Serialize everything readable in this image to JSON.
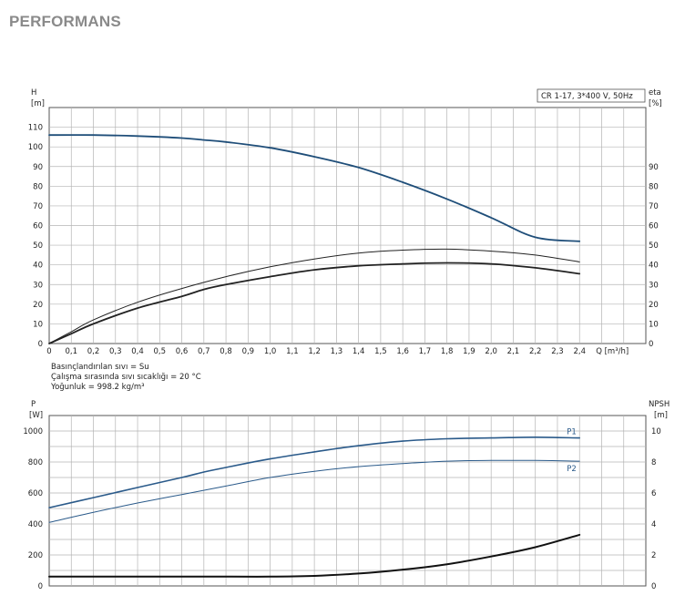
{
  "heading": "PERFORMANS",
  "chart_data": [
    {
      "type": "line",
      "legend_box": "CR 1-17, 3*400 V, 50Hz",
      "left_axis": {
        "name": "H",
        "unit": "[m]",
        "range": [
          0,
          120
        ],
        "ticks": [
          0,
          10,
          20,
          30,
          40,
          50,
          60,
          70,
          80,
          90,
          100,
          110
        ]
      },
      "right_axis": {
        "name": "eta",
        "unit": "[%]",
        "range": [
          0,
          120
        ],
        "ticks": [
          0,
          10,
          20,
          30,
          40,
          50,
          60,
          70,
          80,
          90
        ]
      },
      "x_axis": {
        "name": "Q",
        "unit": "[m³/h]",
        "range": [
          0,
          2.7
        ],
        "ticks": [
          "0",
          "0,1",
          "0,2",
          "0,3",
          "0,4",
          "0,5",
          "0,6",
          "0,7",
          "0,8",
          "0,9",
          "1,0",
          "1,1",
          "1,2",
          "1,3",
          "1,4",
          "1,5",
          "1,6",
          "1,7",
          "1,8",
          "1,9",
          "2,0",
          "2,1",
          "2,2",
          "2,3",
          "2,4"
        ]
      },
      "series": [
        {
          "axis": "left",
          "x": [
            0,
            0.2,
            0.4,
            0.6,
            0.7,
            0.8,
            1.0,
            1.2,
            1.4,
            1.6,
            1.8,
            2.0,
            2.2,
            2.4
          ],
          "y": [
            106,
            106,
            105.5,
            104.5,
            103.5,
            102.5,
            99.5,
            95,
            89.5,
            82,
            73.5,
            64,
            54,
            52
          ]
        },
        {
          "axis": "right",
          "x": [
            0,
            0.1,
            0.2,
            0.4,
            0.6,
            0.8,
            1.0,
            1.2,
            1.4,
            1.6,
            1.8,
            2.0,
            2.2,
            2.4
          ],
          "y": [
            0,
            6,
            12,
            21,
            28,
            34,
            39,
            43,
            46,
            47.5,
            48,
            47,
            45,
            41.5
          ]
        },
        {
          "axis": "right",
          "x": [
            0,
            0.1,
            0.2,
            0.4,
            0.6,
            0.7,
            0.8,
            1.0,
            1.2,
            1.4,
            1.6,
            1.8,
            2.0,
            2.2,
            2.4
          ],
          "y": [
            0,
            5,
            10,
            18,
            24,
            27.5,
            30,
            34,
            37.5,
            39.5,
            40.5,
            41,
            40.5,
            38.5,
            35.5
          ]
        }
      ],
      "notes": [
        "Basınçlandırılan sıvı = Su",
        "Çalışma sırasında sıvı sıcaklığı = 20 °C",
        "Yoğunluk = 998.2 kg/m³"
      ]
    },
    {
      "type": "line",
      "left_axis": {
        "name": "P",
        "unit": "[W]",
        "range": [
          0,
          1100
        ],
        "ticks": [
          0,
          200,
          400,
          600,
          800,
          1000
        ]
      },
      "right_axis": {
        "name": "NPSH",
        "unit": "[m]",
        "range": [
          0,
          11
        ],
        "ticks": [
          0,
          2,
          4,
          6,
          8,
          10
        ]
      },
      "series": [
        {
          "name": "P1",
          "axis": "left",
          "x": [
            0,
            0.2,
            0.4,
            0.6,
            0.7,
            0.8,
            1.0,
            1.2,
            1.4,
            1.6,
            1.8,
            2.0,
            2.2,
            2.4
          ],
          "y": [
            505,
            570,
            635,
            700,
            735,
            765,
            820,
            865,
            905,
            935,
            950,
            955,
            960,
            955
          ]
        },
        {
          "name": "P2",
          "axis": "left",
          "x": [
            0,
            0.2,
            0.4,
            0.6,
            0.8,
            1.0,
            1.2,
            1.4,
            1.6,
            1.8,
            2.0,
            2.2,
            2.4
          ],
          "y": [
            410,
            475,
            535,
            590,
            645,
            700,
            740,
            770,
            790,
            805,
            810,
            810,
            805
          ]
        },
        {
          "axis": "right",
          "x": [
            0,
            0.4,
            0.8,
            1.0,
            1.2,
            1.4,
            1.6,
            1.8,
            2.0,
            2.2,
            2.4
          ],
          "y": [
            0.6,
            0.6,
            0.6,
            0.6,
            0.65,
            0.8,
            1.05,
            1.4,
            1.9,
            2.5,
            3.3
          ]
        }
      ]
    }
  ]
}
